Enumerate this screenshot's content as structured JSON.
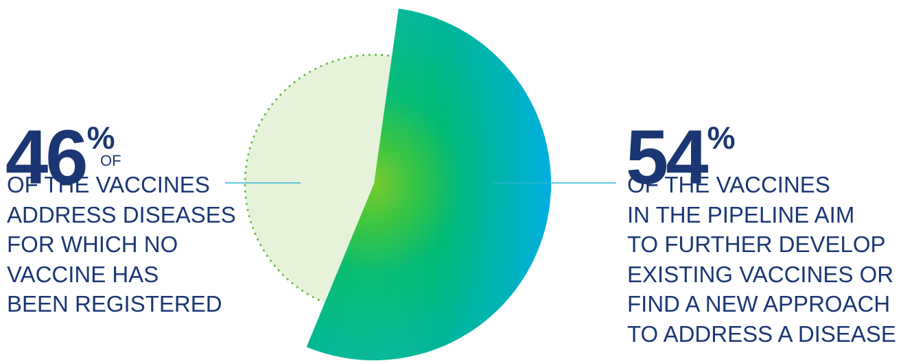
{
  "chart_data": {
    "type": "pie",
    "slices": [
      {
        "value": 46,
        "label": "46%",
        "small_label": "OF",
        "description_lines": [
          "OF THE VACCINES",
          "ADDRESS DISEASES",
          "FOR WHICH NO",
          "VACCINE HAS",
          "BEEN REGISTERED"
        ],
        "color": "#e6f3da",
        "border_color": "#6cc04a",
        "style": "dotted-outline"
      },
      {
        "value": 54,
        "label": "54%",
        "description_lines": [
          "OF THE VACCINES",
          "IN THE PIPELINE AIM",
          "TO FURTHER DEVELOP",
          "EXISTING VACCINES OR",
          "FIND A NEW APPROACH",
          "TO ADDRESS A DISEASE"
        ],
        "color_start": "#6cc417",
        "color_mid": "#00b85a",
        "color_end": "#00aee8",
        "style": "exploded-gradient"
      }
    ]
  },
  "colors": {
    "text": "#1b3773",
    "leader_line": "#2bb8d6"
  }
}
